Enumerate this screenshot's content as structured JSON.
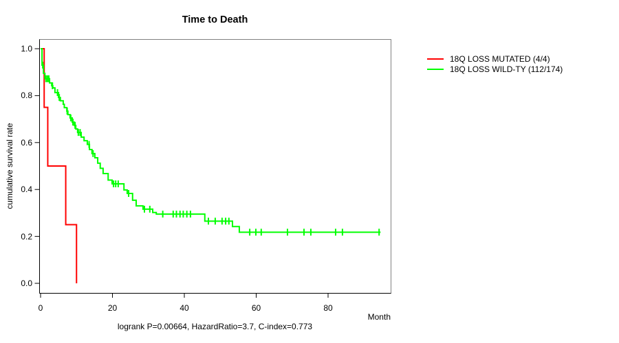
{
  "chart_data": {
    "type": "line",
    "subtype": "kaplan-meier-step-curves",
    "title": "Time to Death",
    "xlabel": "Month",
    "ylabel": "cumulative survival rate",
    "footer": "logrank P=0.00664, HazardRatio=3.7, C-index=0.773",
    "xlim": [
      0,
      97.4
    ],
    "ylim": [
      -0.04,
      1.04
    ],
    "grid": false,
    "legend_position": "outside-right-top",
    "frame_color": "#808080",
    "axis_color": "#000000",
    "x_ticks": [
      {
        "value": 0,
        "label": "0"
      },
      {
        "value": 20,
        "label": "20"
      },
      {
        "value": 40,
        "label": "40"
      },
      {
        "value": 60,
        "label": "60"
      },
      {
        "value": 80,
        "label": "80"
      }
    ],
    "y_ticks": [
      {
        "value": 0.0,
        "label": "0.0"
      },
      {
        "value": 0.2,
        "label": "0.2"
      },
      {
        "value": 0.4,
        "label": "0.4"
      },
      {
        "value": 0.6,
        "label": "0.6"
      },
      {
        "value": 0.8,
        "label": "0.8"
      },
      {
        "value": 1.0,
        "label": "1.0"
      }
    ],
    "series": [
      {
        "name": "18Q LOSS MUTATED (4/4)",
        "color": "#ff0000",
        "steps": [
          [
            0,
            1.0
          ],
          [
            1,
            0.75
          ],
          [
            2,
            0.5
          ],
          [
            7,
            0.25
          ],
          [
            10,
            0.0
          ]
        ],
        "end_time": 10,
        "censor_times": []
      },
      {
        "name": "18Q LOSS WILD-TY (112/174)",
        "color": "#00ff00",
        "steps": [
          [
            0,
            1.0
          ],
          [
            0.4,
            0.93
          ],
          [
            0.8,
            0.895
          ],
          [
            1.2,
            0.872
          ],
          [
            2.5,
            0.854
          ],
          [
            3.1,
            0.842
          ],
          [
            3.4,
            0.833
          ],
          [
            4.0,
            0.813
          ],
          [
            5.0,
            0.792
          ],
          [
            5.5,
            0.778
          ],
          [
            6.3,
            0.763
          ],
          [
            6.6,
            0.749
          ],
          [
            7.3,
            0.734
          ],
          [
            7.6,
            0.719
          ],
          [
            8.2,
            0.705
          ],
          [
            8.8,
            0.687
          ],
          [
            9.4,
            0.673
          ],
          [
            9.8,
            0.658
          ],
          [
            10.3,
            0.643
          ],
          [
            11.3,
            0.623
          ],
          [
            12.1,
            0.608
          ],
          [
            13.0,
            0.592
          ],
          [
            13.6,
            0.57
          ],
          [
            14.3,
            0.553
          ],
          [
            15.1,
            0.535
          ],
          [
            15.9,
            0.512
          ],
          [
            16.6,
            0.49
          ],
          [
            17.4,
            0.468
          ],
          [
            18.8,
            0.44
          ],
          [
            19.9,
            0.424
          ],
          [
            23.2,
            0.398
          ],
          [
            24.1,
            0.383
          ],
          [
            25.6,
            0.354
          ],
          [
            26.6,
            0.33
          ],
          [
            28.5,
            0.316
          ],
          [
            31.2,
            0.302
          ],
          [
            32.2,
            0.295
          ],
          [
            45.7,
            0.265
          ],
          [
            53.4,
            0.242
          ],
          [
            55.3,
            0.218
          ]
        ],
        "end_time": 94.6,
        "censor_times": [
          0.6,
          1.5,
          1.9,
          2.3,
          3.3,
          4.7,
          5.2,
          7.4,
          8.4,
          9.0,
          9.6,
          10.5,
          11.0,
          13.5,
          14.6,
          20.3,
          20.9,
          21.6,
          24.5,
          28.9,
          30.4,
          34.0,
          36.9,
          37.8,
          38.8,
          39.7,
          40.7,
          41.7,
          46.7,
          48.6,
          50.5,
          51.5,
          52.4,
          58.2,
          59.9,
          61.4,
          68.7,
          73.3,
          75.2,
          82.1,
          84.0,
          94.2
        ]
      }
    ]
  }
}
